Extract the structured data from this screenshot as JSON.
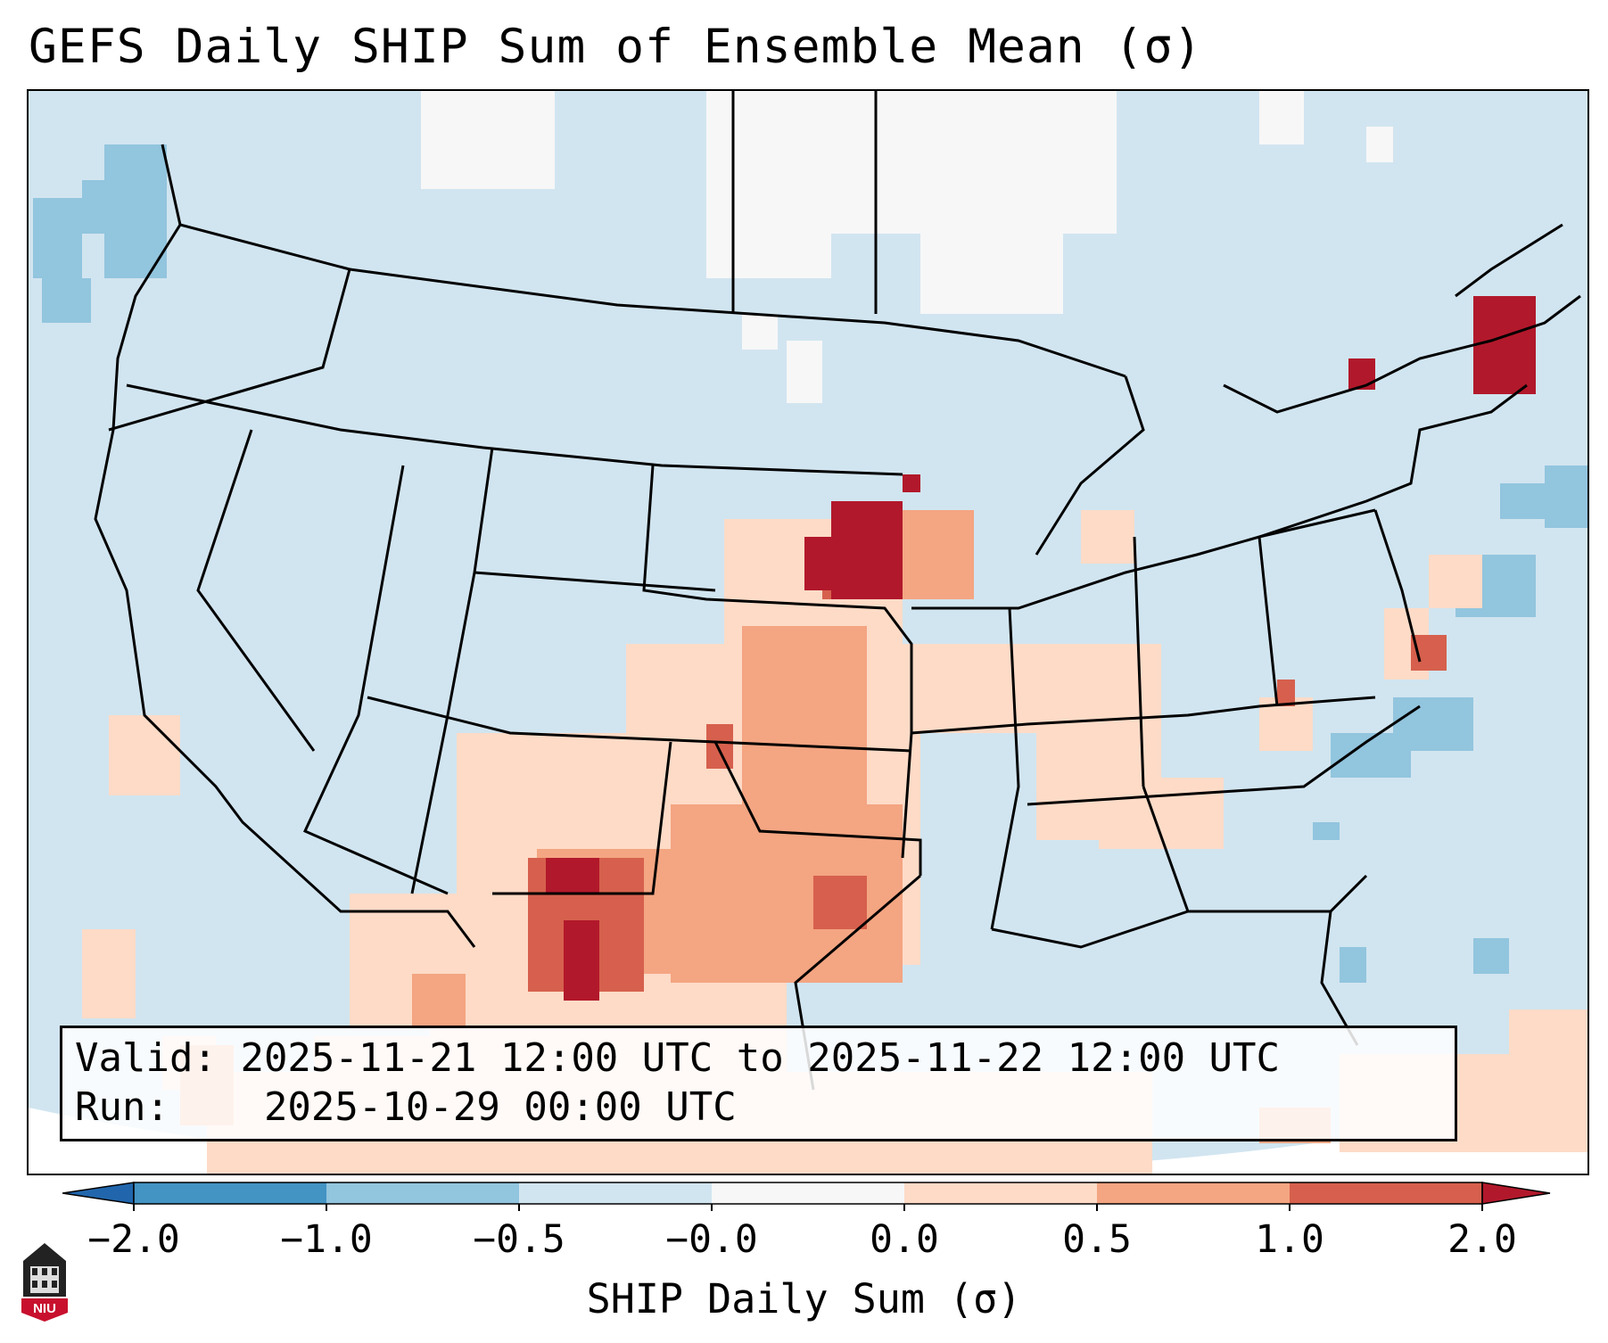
{
  "title": "GEFS Daily SHIP Sum of Ensemble Mean (σ)",
  "info": {
    "valid_label": "Valid:",
    "valid_value": "2025-11-21 12:00 UTC to 2025-11-22 12:00 UTC",
    "run_label": "Run:",
    "run_value": "2025-10-29 00:00 UTC"
  },
  "colorbar": {
    "label": "SHIP Daily Sum (σ)",
    "ticks": [
      "−2.0",
      "−1.0",
      "−0.5",
      "−0.0",
      "0.0",
      "0.5",
      "1.0",
      "2.0"
    ],
    "bins": [
      {
        "from": "<-2.0",
        "color": "#2166ac"
      },
      {
        "from": "-2.0",
        "to": "-1.0",
        "color": "#4393c3"
      },
      {
        "from": "-1.0",
        "to": "-0.5",
        "color": "#92c5de"
      },
      {
        "from": "-0.5",
        "to": "-0.0",
        "color": "#d1e5f0"
      },
      {
        "from": "-0.0",
        "to": "0.0",
        "color": "#f7f7f7"
      },
      {
        "from": "0.0",
        "to": "0.5",
        "color": "#fddbc7"
      },
      {
        "from": "0.5",
        "to": "1.0",
        "color": "#f4a582"
      },
      {
        "from": "1.0",
        "to": "2.0",
        "color": "#d6604d"
      },
      {
        "from": ">2.0",
        "color": "#b2182b"
      }
    ]
  },
  "logo": {
    "text": "NIU"
  },
  "icons": {
    "logo": "niu-logo-icon"
  },
  "colors": {
    "background_field": "#d1e5f0",
    "border": "#000000"
  }
}
